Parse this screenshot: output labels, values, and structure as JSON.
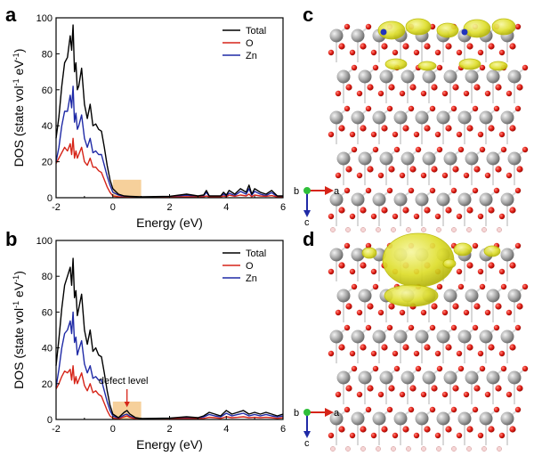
{
  "figure": {
    "panels": [
      "a",
      "b",
      "c",
      "d"
    ],
    "axis_label_triad": {
      "b": "b",
      "a": "a",
      "c": "c"
    }
  },
  "chart_data": [
    {
      "panel": "a",
      "type": "line",
      "xlabel": "Energy (eV)",
      "ylabel": "DOS (state vol",
      "ylabel_sup1": "-1",
      "ylabel_mid": " eV",
      "ylabel_sup2": "-1",
      "ylabel_end": ")",
      "xlim": [
        -2,
        6
      ],
      "ylim": [
        0,
        100
      ],
      "xticks": [
        "-2",
        "0",
        "2",
        "4",
        "6"
      ],
      "yticks": [
        "0",
        "20",
        "40",
        "60",
        "80",
        "100"
      ],
      "legend": "top-right",
      "highlight": {
        "x": [
          0,
          1
        ],
        "y": [
          0,
          10
        ],
        "color": "#f5c88a"
      },
      "annotation": null,
      "series": [
        {
          "name": "Total",
          "color": "#000000",
          "x": [
            -2.0,
            -1.9,
            -1.8,
            -1.7,
            -1.6,
            -1.5,
            -1.45,
            -1.4,
            -1.35,
            -1.3,
            -1.25,
            -1.2,
            -1.1,
            -1.0,
            -0.9,
            -0.8,
            -0.7,
            -0.6,
            -0.5,
            -0.4,
            -0.3,
            -0.2,
            -0.1,
            0.0,
            0.2,
            0.4,
            0.6,
            1.0,
            2.0,
            2.6,
            3.0,
            3.2,
            3.3,
            3.4,
            3.6,
            3.8,
            3.9,
            4.0,
            4.1,
            4.3,
            4.5,
            4.7,
            4.8,
            4.9,
            5.0,
            5.2,
            5.4,
            5.6,
            5.8,
            6.0
          ],
          "y": [
            33,
            45,
            62,
            75,
            78,
            90,
            82,
            96,
            70,
            75,
            60,
            62,
            72,
            52,
            44,
            52,
            40,
            41,
            38,
            37,
            28,
            18,
            10,
            5,
            2,
            1,
            0.8,
            0.5,
            0.8,
            2,
            1,
            1.5,
            4,
            1,
            1,
            1,
            3,
            1.5,
            4,
            2,
            5,
            3,
            7,
            2,
            5,
            3,
            2,
            4,
            1,
            1
          ]
        },
        {
          "name": "O",
          "color": "#d62418",
          "x": [
            -2.0,
            -1.9,
            -1.8,
            -1.7,
            -1.6,
            -1.5,
            -1.45,
            -1.4,
            -1.35,
            -1.3,
            -1.25,
            -1.2,
            -1.1,
            -1.0,
            -0.9,
            -0.8,
            -0.7,
            -0.6,
            -0.5,
            -0.4,
            -0.3,
            -0.2,
            -0.1,
            0.0,
            0.2,
            0.4,
            0.6,
            1.0,
            2.0,
            2.6,
            3.0,
            3.2,
            3.3,
            3.4,
            3.6,
            3.8,
            3.9,
            4.0,
            4.1,
            4.3,
            4.5,
            4.7,
            4.8,
            4.9,
            5.0,
            5.2,
            5.4,
            5.6,
            5.8,
            6.0
          ],
          "y": [
            19,
            22,
            25,
            28,
            26,
            30,
            24,
            33,
            22,
            26,
            22,
            24,
            28,
            20,
            18,
            22,
            17,
            17,
            15,
            14,
            10,
            6,
            3,
            1,
            0.5,
            0.3,
            0.3,
            0.2,
            0.3,
            0.6,
            0.4,
            0.5,
            1,
            0.4,
            0.4,
            0.4,
            1,
            0.5,
            1.5,
            0.8,
            1.5,
            1,
            2,
            0.6,
            1.5,
            1,
            0.8,
            1.2,
            0.4,
            0.3
          ]
        },
        {
          "name": "Zn",
          "color": "#1f2aa6",
          "x": [
            -2.0,
            -1.9,
            -1.8,
            -1.7,
            -1.6,
            -1.5,
            -1.45,
            -1.4,
            -1.35,
            -1.3,
            -1.25,
            -1.2,
            -1.1,
            -1.0,
            -0.9,
            -0.8,
            -0.7,
            -0.6,
            -0.5,
            -0.4,
            -0.3,
            -0.2,
            -0.1,
            0.0,
            0.2,
            0.4,
            0.6,
            1.0,
            2.0,
            2.6,
            3.0,
            3.2,
            3.3,
            3.4,
            3.6,
            3.8,
            3.9,
            4.0,
            4.1,
            4.3,
            4.5,
            4.7,
            4.8,
            4.9,
            5.0,
            5.2,
            5.4,
            5.6,
            5.8,
            6.0
          ],
          "y": [
            20,
            28,
            40,
            48,
            48,
            57,
            50,
            62,
            42,
            47,
            38,
            40,
            46,
            33,
            28,
            33,
            25,
            26,
            24,
            24,
            18,
            12,
            7,
            3,
            1.5,
            0.7,
            0.5,
            0.3,
            0.5,
            1.4,
            0.6,
            1,
            3,
            0.6,
            0.6,
            0.6,
            2,
            1,
            2.5,
            1.2,
            3.5,
            2,
            5,
            1.4,
            3.5,
            2,
            1.2,
            2.8,
            0.6,
            0.7
          ]
        }
      ]
    },
    {
      "panel": "b",
      "type": "line",
      "xlabel": "Energy (eV)",
      "ylabel": "DOS (state vol",
      "ylabel_sup1": "-1",
      "ylabel_mid": " eV",
      "ylabel_sup2": "-1",
      "ylabel_end": ")",
      "xlim": [
        -2,
        6
      ],
      "ylim": [
        0,
        100
      ],
      "xticks": [
        "-2",
        "0",
        "2",
        "4",
        "6"
      ],
      "yticks": [
        "0",
        "20",
        "40",
        "60",
        "80",
        "100"
      ],
      "legend": "top-right",
      "highlight": {
        "x": [
          0,
          1
        ],
        "y": [
          0,
          10
        ],
        "color": "#f5c88a"
      },
      "annotation": {
        "text": "defect level",
        "x": 0.5,
        "y": 5
      },
      "series": [
        {
          "name": "Total",
          "color": "#000000",
          "x": [
            -2.0,
            -1.9,
            -1.8,
            -1.7,
            -1.6,
            -1.5,
            -1.45,
            -1.4,
            -1.35,
            -1.3,
            -1.25,
            -1.2,
            -1.1,
            -1.0,
            -0.9,
            -0.8,
            -0.7,
            -0.6,
            -0.5,
            -0.4,
            -0.3,
            -0.2,
            -0.1,
            0.0,
            0.2,
            0.4,
            0.5,
            0.6,
            0.8,
            1.0,
            2.0,
            2.6,
            3.0,
            3.2,
            3.4,
            3.6,
            3.8,
            4.0,
            4.2,
            4.4,
            4.6,
            4.8,
            5.0,
            5.2,
            5.4,
            5.6,
            5.8,
            6.0
          ],
          "y": [
            30,
            45,
            62,
            75,
            80,
            85,
            75,
            90,
            68,
            72,
            58,
            62,
            70,
            50,
            42,
            50,
            38,
            40,
            36,
            35,
            26,
            16,
            8,
            3,
            1,
            4,
            5,
            3,
            1,
            0.5,
            0.8,
            1.5,
            1,
            2,
            4,
            3,
            2,
            5,
            3,
            4,
            5,
            3,
            4,
            3,
            4,
            3,
            2,
            3
          ]
        },
        {
          "name": "O",
          "color": "#d62418",
          "x": [
            -2.0,
            -1.9,
            -1.8,
            -1.7,
            -1.6,
            -1.5,
            -1.45,
            -1.4,
            -1.35,
            -1.3,
            -1.25,
            -1.2,
            -1.1,
            -1.0,
            -0.9,
            -0.8,
            -0.7,
            -0.6,
            -0.5,
            -0.4,
            -0.3,
            -0.2,
            -0.1,
            0.0,
            0.2,
            0.4,
            0.5,
            0.6,
            0.8,
            1.0,
            2.0,
            2.6,
            3.0,
            3.2,
            3.4,
            3.6,
            3.8,
            4.0,
            4.2,
            4.4,
            4.6,
            4.8,
            5.0,
            5.2,
            5.4,
            5.6,
            5.8,
            6.0
          ],
          "y": [
            17,
            20,
            24,
            27,
            26,
            28,
            22,
            30,
            20,
            24,
            20,
            22,
            26,
            19,
            16,
            20,
            15,
            16,
            14,
            13,
            9,
            5,
            2,
            0.8,
            0.3,
            1.5,
            2,
            1.2,
            0.3,
            0.2,
            0.3,
            0.5,
            0.4,
            0.6,
            1.2,
            1,
            0.6,
            1.5,
            1,
            1.2,
            1.5,
            1,
            1.2,
            1,
            1.2,
            1,
            0.6,
            1
          ]
        },
        {
          "name": "Zn",
          "color": "#1f2aa6",
          "x": [
            -2.0,
            -1.9,
            -1.8,
            -1.7,
            -1.6,
            -1.5,
            -1.45,
            -1.4,
            -1.35,
            -1.3,
            -1.25,
            -1.2,
            -1.1,
            -1.0,
            -0.9,
            -0.8,
            -0.7,
            -0.6,
            -0.5,
            -0.4,
            -0.3,
            -0.2,
            -0.1,
            0.0,
            0.2,
            0.4,
            0.5,
            0.6,
            0.8,
            1.0,
            2.0,
            2.6,
            3.0,
            3.2,
            3.4,
            3.6,
            3.8,
            4.0,
            4.2,
            4.4,
            4.6,
            4.8,
            5.0,
            5.2,
            5.4,
            5.6,
            5.8,
            6.0
          ],
          "y": [
            18,
            28,
            40,
            48,
            50,
            55,
            48,
            60,
            43,
            46,
            36,
            39,
            44,
            31,
            26,
            30,
            23,
            24,
            22,
            22,
            16,
            10,
            5,
            2,
            0.6,
            2.5,
            3,
            1.8,
            0.6,
            0.3,
            0.5,
            1,
            0.6,
            1.4,
            2.8,
            2,
            1.4,
            3.5,
            2,
            2.8,
            3.5,
            2,
            2.8,
            2,
            2.8,
            2,
            1.4,
            2
          ]
        }
      ]
    }
  ]
}
